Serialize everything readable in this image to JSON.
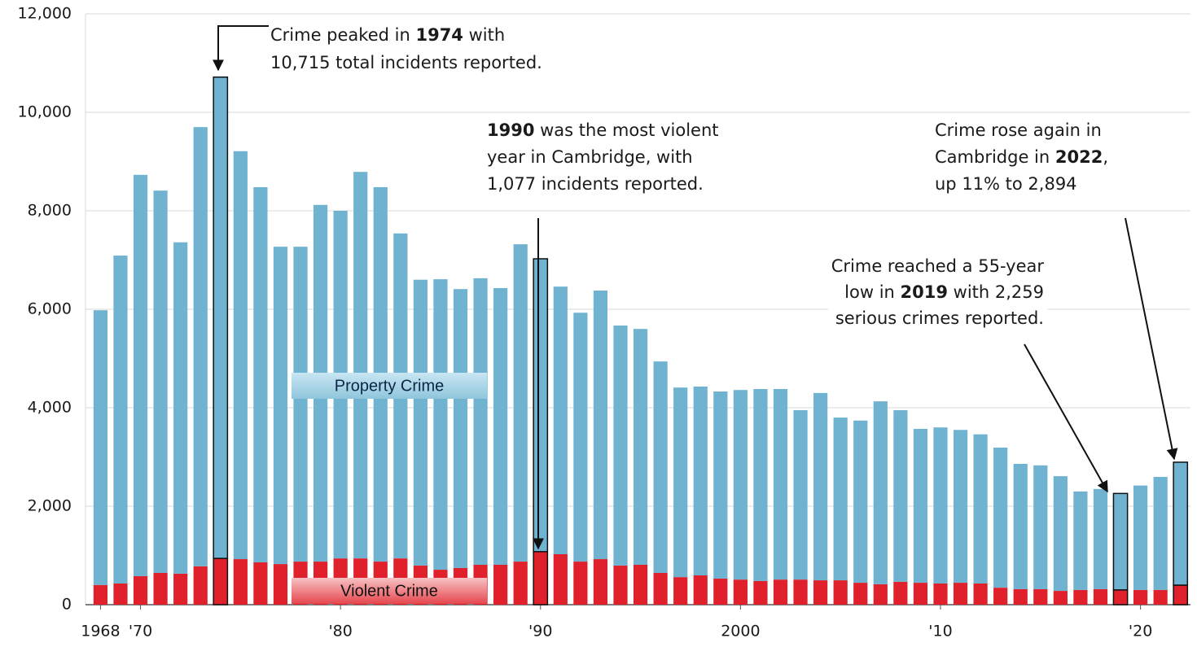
{
  "chart_data": {
    "type": "stacked_bar",
    "x": [
      1968,
      1969,
      1970,
      1971,
      1972,
      1973,
      1974,
      1975,
      1976,
      1977,
      1978,
      1979,
      1980,
      1981,
      1982,
      1983,
      1984,
      1985,
      1986,
      1987,
      1988,
      1989,
      1990,
      1991,
      1992,
      1993,
      1994,
      1995,
      1996,
      1997,
      1998,
      1999,
      2000,
      2001,
      2002,
      2003,
      2004,
      2005,
      2006,
      2007,
      2008,
      2009,
      2010,
      2011,
      2012,
      2013,
      2014,
      2015,
      2016,
      2017,
      2018,
      2019,
      2020,
      2021,
      2022
    ],
    "series": [
      {
        "name": "Violent Crime",
        "color": "#e0202a",
        "values": [
          400,
          430,
          580,
          645,
          630,
          780,
          940,
          925,
          860,
          825,
          875,
          875,
          940,
          940,
          875,
          940,
          795,
          710,
          745,
          810,
          810,
          875,
          1077,
          1025,
          875,
          925,
          795,
          810,
          645,
          560,
          595,
          530,
          510,
          480,
          510,
          510,
          495,
          495,
          445,
          415,
          465,
          445,
          430,
          445,
          430,
          345,
          315,
          315,
          280,
          300,
          315,
          300,
          300,
          300,
          397
        ]
      },
      {
        "name": "Property Crime",
        "color": "#6fb3d0",
        "values": [
          5580,
          6660,
          8150,
          7765,
          6730,
          8920,
          9775,
          8285,
          7620,
          6445,
          6395,
          7245,
          7060,
          7850,
          7605,
          6600,
          5805,
          5900,
          5665,
          5820,
          5620,
          6445,
          5948,
          5435,
          5055,
          5455,
          4875,
          4790,
          4295,
          3850,
          3835,
          3800,
          3850,
          3900,
          3870,
          3440,
          3805,
          3305,
          3295,
          3715,
          3485,
          3125,
          3170,
          3105,
          3030,
          2845,
          2545,
          2515,
          2330,
          2000,
          2035,
          1959,
          2120,
          2295,
          2497
        ]
      }
    ],
    "highlight": [
      1974,
      1990,
      2019,
      2022
    ],
    "xlim": [
      1967.25,
      2022.5
    ],
    "xticks": [
      {
        "value": 1968,
        "label": "1968"
      },
      {
        "value": 1970,
        "label": "'70"
      },
      {
        "value": 1980,
        "label": "'80"
      },
      {
        "value": 1990,
        "label": "'90"
      },
      {
        "value": 2000,
        "label": "2000"
      },
      {
        "value": 2010,
        "label": "'10"
      },
      {
        "value": 2020,
        "label": "'20"
      }
    ],
    "ylim": [
      0,
      12000
    ],
    "yticks": [
      0,
      {
        "value": 2000,
        "label": "2,000"
      },
      {
        "value": 4000,
        "label": "4,000"
      },
      {
        "value": 6000,
        "label": "6,000"
      },
      {
        "value": 8000,
        "label": "8,000"
      },
      {
        "value": 10000,
        "label": "10,000"
      },
      {
        "value": 12000,
        "label": "12,000"
      }
    ],
    "grid": true,
    "annotations": [
      {
        "lines": [
          [
            {
              "text": "Crime peaked in "
            },
            {
              "text": "1974",
              "bold": true
            },
            {
              "text": " with"
            }
          ],
          [
            {
              "text": "10,715 total incidents reported."
            }
          ]
        ]
      },
      {
        "lines": [
          [
            {
              "text": "1990",
              "bold": true
            },
            {
              "text": " was the most violent"
            }
          ],
          [
            {
              "text": "year in Cambridge, with"
            }
          ],
          [
            {
              "text": "1,077 incidents reported."
            }
          ]
        ]
      },
      {
        "lines": [
          [
            {
              "text": "Crime rose again in"
            }
          ],
          [
            {
              "text": "Cambridge in "
            },
            {
              "text": "2022",
              "bold": true
            },
            {
              "text": ","
            }
          ],
          [
            {
              "text": "up 11% to 2,894"
            }
          ]
        ]
      },
      {
        "lines": [
          [
            {
              "text": "Crime reached a 55-year"
            }
          ],
          [
            {
              "text": "low in "
            },
            {
              "text": "2019",
              "bold": true
            },
            {
              "text": " with 2,259"
            }
          ],
          [
            {
              "text": "serious crimes reported."
            }
          ]
        ]
      }
    ]
  }
}
